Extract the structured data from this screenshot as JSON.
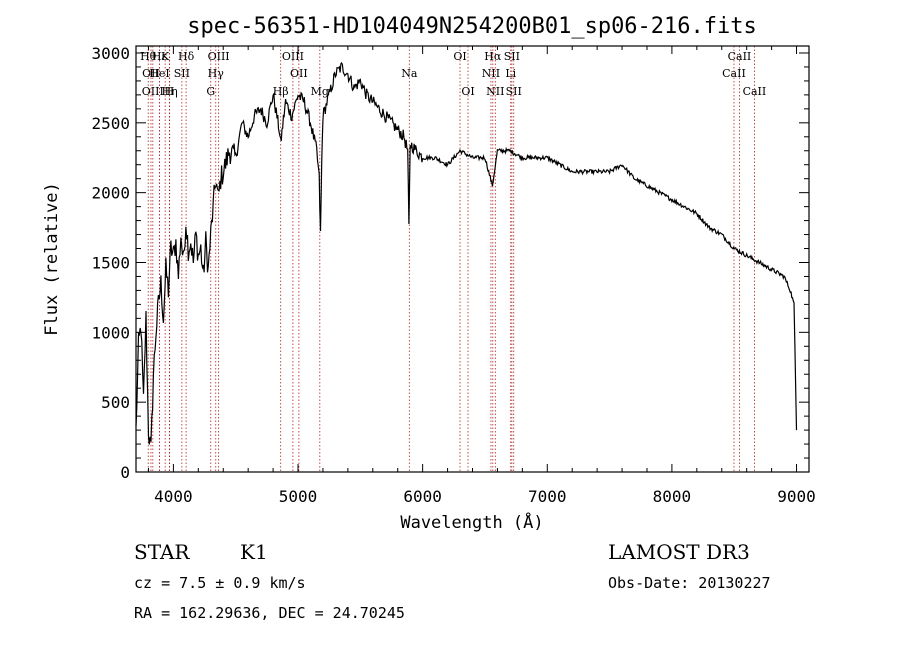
{
  "chart_data": {
    "type": "line",
    "title": "spec-56351-HD104049N254200B01_sp06-216.fits",
    "xlabel": "Wavelength (Å)",
    "ylabel": "Flux (relative)",
    "xlim": [
      3700,
      9100
    ],
    "ylim": [
      0,
      3050
    ],
    "xticks": [
      4000,
      5000,
      6000,
      7000,
      8000,
      9000
    ],
    "yticks": [
      0,
      500,
      1000,
      1500,
      2000,
      2500,
      3000
    ],
    "series": [
      {
        "name": "spectrum",
        "x": [
          3700,
          3720,
          3740,
          3760,
          3780,
          3800,
          3820,
          3840,
          3860,
          3880,
          3900,
          3920,
          3940,
          3960,
          3980,
          4000,
          4020,
          4040,
          4060,
          4080,
          4100,
          4120,
          4140,
          4160,
          4180,
          4200,
          4220,
          4240,
          4260,
          4280,
          4300,
          4320,
          4340,
          4360,
          4380,
          4400,
          4450,
          4500,
          4550,
          4600,
          4650,
          4700,
          4750,
          4800,
          4850,
          4860,
          4900,
          4950,
          5000,
          5050,
          5100,
          5150,
          5170,
          5180,
          5190,
          5200,
          5250,
          5300,
          5350,
          5400,
          5450,
          5500,
          5550,
          5600,
          5650,
          5700,
          5750,
          5800,
          5850,
          5880,
          5890,
          5900,
          5950,
          6000,
          6100,
          6200,
          6300,
          6400,
          6500,
          6560,
          6600,
          6700,
          6800,
          6900,
          7000,
          7100,
          7200,
          7300,
          7400,
          7500,
          7600,
          7650,
          7700,
          7800,
          7900,
          8000,
          8100,
          8200,
          8300,
          8400,
          8500,
          8600,
          8700,
          8800,
          8900,
          8950,
          8980,
          9000
        ],
        "y": [
          300,
          900,
          1050,
          500,
          1100,
          300,
          150,
          700,
          1000,
          1200,
          1350,
          1100,
          1450,
          1300,
          1600,
          1550,
          1650,
          1400,
          1700,
          1500,
          1800,
          1600,
          1650,
          1500,
          1700,
          1550,
          1600,
          1400,
          1650,
          1450,
          1700,
          1900,
          2100,
          1950,
          2100,
          2150,
          2300,
          2250,
          2500,
          2400,
          2550,
          2600,
          2500,
          2700,
          2450,
          2350,
          2650,
          2550,
          2700,
          2650,
          2500,
          2300,
          2100,
          1700,
          2200,
          2550,
          2700,
          2850,
          2900,
          2850,
          2750,
          2800,
          2700,
          2650,
          2600,
          2550,
          2500,
          2450,
          2400,
          2300,
          1750,
          2350,
          2300,
          2250,
          2250,
          2200,
          2300,
          2250,
          2250,
          2050,
          2300,
          2300,
          2250,
          2250,
          2250,
          2200,
          2150,
          2150,
          2150,
          2150,
          2200,
          2150,
          2100,
          2050,
          2000,
          1950,
          1900,
          1850,
          1750,
          1700,
          1600,
          1550,
          1500,
          1450,
          1400,
          1300,
          1200,
          300
        ]
      }
    ],
    "reference_lines": [
      {
        "wavelength": 3798,
        "label": "Hθ",
        "row": 0
      },
      {
        "wavelength": 3820,
        "label": "OII",
        "row": 1
      },
      {
        "wavelength": 3835,
        "label": "OIII",
        "row": 2
      },
      {
        "wavelength": 3889,
        "label": "Hε",
        "row": 0
      },
      {
        "wavelength": 3934,
        "label": "K",
        "row": 0
      },
      {
        "wavelength": 3889,
        "label": "HeI",
        "row": 1
      },
      {
        "wavelength": 3968,
        "label": "H",
        "row": 2
      },
      {
        "wavelength": 3970,
        "label": "Hη",
        "row": 2
      },
      {
        "wavelength": 4068,
        "label": "SII",
        "row": 1
      },
      {
        "wavelength": 4102,
        "label": "Hδ",
        "row": 0
      },
      {
        "wavelength": 4300,
        "label": "G",
        "row": 2
      },
      {
        "wavelength": 4340,
        "label": "Hγ",
        "row": 1
      },
      {
        "wavelength": 4363,
        "label": "OIII",
        "row": 0
      },
      {
        "wavelength": 4861,
        "label": "Hβ",
        "row": 2
      },
      {
        "wavelength": 4959,
        "label": "OIII",
        "row": 0
      },
      {
        "wavelength": 5007,
        "label": "OII",
        "row": 1
      },
      {
        "wavelength": 5175,
        "label": "Mg",
        "row": 2
      },
      {
        "wavelength": 5893,
        "label": "Na",
        "row": 1
      },
      {
        "wavelength": 6300,
        "label": "OI",
        "row": 0
      },
      {
        "wavelength": 6364,
        "label": "OI",
        "row": 2
      },
      {
        "wavelength": 6548,
        "label": "NII",
        "row": 1
      },
      {
        "wavelength": 6563,
        "label": "Hα",
        "row": 0
      },
      {
        "wavelength": 6583,
        "label": "NII",
        "row": 2
      },
      {
        "wavelength": 6707,
        "label": "Li",
        "row": 1
      },
      {
        "wavelength": 6716,
        "label": "SII",
        "row": 0
      },
      {
        "wavelength": 6731,
        "label": "SII",
        "row": 2
      },
      {
        "wavelength": 8498,
        "label": "CaII",
        "row": 1
      },
      {
        "wavelength": 8542,
        "label": "CaII",
        "row": 0
      },
      {
        "wavelength": 8662,
        "label": "CaII",
        "row": 2
      }
    ],
    "grid": false,
    "line_color": "#000000",
    "reference_line_color": "#b22222"
  },
  "info": {
    "object_class": "STAR",
    "subclass": "K1",
    "redshift": "cz = 7.5 ± 0.9 km/s",
    "coords": "RA = 162.29636, DEC =  24.70245",
    "survey": "LAMOST DR3",
    "obs_date": "Obs-Date: 20130227"
  }
}
